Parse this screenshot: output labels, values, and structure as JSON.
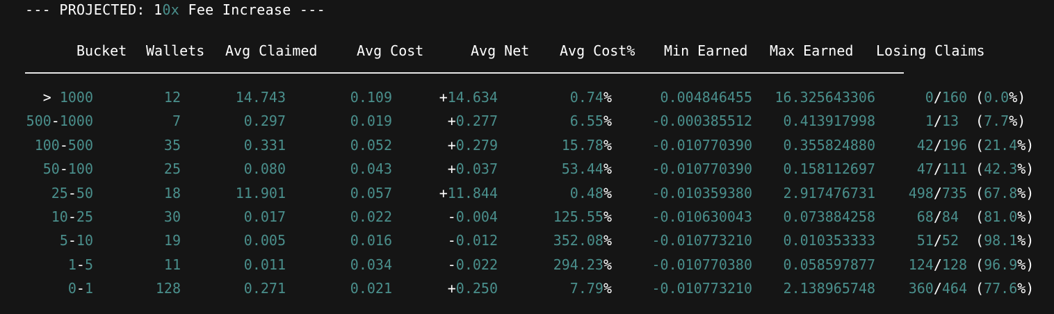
{
  "title": {
    "prefix": "--- PROJECTED: 1",
    "highlight": "0x",
    "suffix": " Fee Increase ---"
  },
  "headers": [
    "Bucket",
    "Wallets",
    "Avg Claimed",
    "Avg Cost",
    "Avg Net",
    "Avg Cost%",
    "Min Earned",
    "Max Earned",
    "Losing Claims"
  ],
  "rows": [
    {
      "bucket_prefix": "> ",
      "bucket": "1000",
      "bucket_sep": "",
      "bucket_end": "",
      "wallets": "12",
      "claimed": "14.743",
      "cost": "0.109",
      "net_sign": "+",
      "net": "14.634",
      "cost_pct": "0.74",
      "min": "0.004846455",
      "max": "16.325643306",
      "lose": "0",
      "total": "160",
      "pct": "0.0"
    },
    {
      "bucket_prefix": "",
      "bucket": "500",
      "bucket_sep": "-",
      "bucket_end": "1000",
      "wallets": "7",
      "claimed": "0.297",
      "cost": "0.019",
      "net_sign": "+",
      "net": "0.277",
      "cost_pct": "6.55",
      "min": "-0.000385512",
      "max": "0.413917998",
      "lose": "1",
      "total": "13",
      "pct": "7.7"
    },
    {
      "bucket_prefix": "",
      "bucket": "100",
      "bucket_sep": "-",
      "bucket_end": "500",
      "wallets": "35",
      "claimed": "0.331",
      "cost": "0.052",
      "net_sign": "+",
      "net": "0.279",
      "cost_pct": "15.78",
      "min": "-0.010770390",
      "max": "0.355824880",
      "lose": "42",
      "total": "196",
      "pct": "21.4"
    },
    {
      "bucket_prefix": "",
      "bucket": "50",
      "bucket_sep": "-",
      "bucket_end": "100",
      "wallets": "25",
      "claimed": "0.080",
      "cost": "0.043",
      "net_sign": "+",
      "net": "0.037",
      "cost_pct": "53.44",
      "min": "-0.010770390",
      "max": "0.158112697",
      "lose": "47",
      "total": "111",
      "pct": "42.3"
    },
    {
      "bucket_prefix": "",
      "bucket": "25",
      "bucket_sep": "-",
      "bucket_end": "50",
      "wallets": "18",
      "claimed": "11.901",
      "cost": "0.057",
      "net_sign": "+",
      "net": "11.844",
      "cost_pct": "0.48",
      "min": "-0.010359380",
      "max": "2.917476731",
      "lose": "498",
      "total": "735",
      "pct": "67.8"
    },
    {
      "bucket_prefix": "",
      "bucket": "10",
      "bucket_sep": "-",
      "bucket_end": "25",
      "wallets": "30",
      "claimed": "0.017",
      "cost": "0.022",
      "net_sign": "-",
      "net": "0.004",
      "cost_pct": "125.55",
      "min": "-0.010630043",
      "max": "0.073884258",
      "lose": "68",
      "total": "84",
      "pct": "81.0"
    },
    {
      "bucket_prefix": "",
      "bucket": "5",
      "bucket_sep": "-",
      "bucket_end": "10",
      "wallets": "19",
      "claimed": "0.005",
      "cost": "0.016",
      "net_sign": "-",
      "net": "0.012",
      "cost_pct": "352.08",
      "min": "-0.010773210",
      "max": "0.010353333",
      "lose": "51",
      "total": "52",
      "pct": "98.1"
    },
    {
      "bucket_prefix": "",
      "bucket": "1",
      "bucket_sep": "-",
      "bucket_end": "5",
      "wallets": "11",
      "claimed": "0.011",
      "cost": "0.034",
      "net_sign": "-",
      "net": "0.022",
      "cost_pct": "294.23",
      "min": "-0.010770380",
      "max": "0.058597877",
      "lose": "124",
      "total": "128",
      "pct": "96.9"
    },
    {
      "bucket_prefix": "",
      "bucket": "0",
      "bucket_sep": "-",
      "bucket_end": "1",
      "wallets": "128",
      "claimed": "0.271",
      "cost": "0.021",
      "net_sign": "+",
      "net": "0.250",
      "cost_pct": "7.79",
      "min": "-0.010773210",
      "max": "2.138965748",
      "lose": "360",
      "total": "464",
      "pct": "77.6"
    }
  ],
  "colors": {
    "background": "#151515",
    "text": "#ffffff",
    "accent": "#4a8f8c"
  }
}
